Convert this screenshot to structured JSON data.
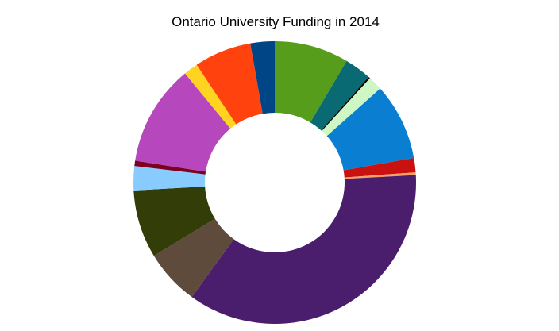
{
  "chart_data": {
    "type": "pie",
    "variant": "donut",
    "title": "Ontario University Funding in 2014",
    "legend": "none",
    "start_angle_deg": 0,
    "direction": "clockwise",
    "slices": [
      {
        "value": 8.3,
        "color": "#579d1c"
      },
      {
        "value": 3.0,
        "color": "#0a6a74"
      },
      {
        "value": 0.2,
        "color": "#000000"
      },
      {
        "value": 1.6,
        "color": "#cff7c4"
      },
      {
        "value": 8.6,
        "color": "#0a7fd2"
      },
      {
        "value": 1.6,
        "color": "#c9120f"
      },
      {
        "value": 0.3,
        "color": "#ff9f67"
      },
      {
        "value": 35.0,
        "color": "#4a1e6d"
      },
      {
        "value": 6.2,
        "color": "#5e4b3c"
      },
      {
        "value": 7.6,
        "color": "#333d07"
      },
      {
        "value": 2.7,
        "color": "#88cbff"
      },
      {
        "value": 0.6,
        "color": "#7c0021"
      },
      {
        "value": 11.3,
        "color": "#b747bd"
      },
      {
        "value": 1.6,
        "color": "#ffd420"
      },
      {
        "value": 6.4,
        "color": "#ff420e"
      },
      {
        "value": 2.7,
        "color": "#004586"
      }
    ]
  }
}
